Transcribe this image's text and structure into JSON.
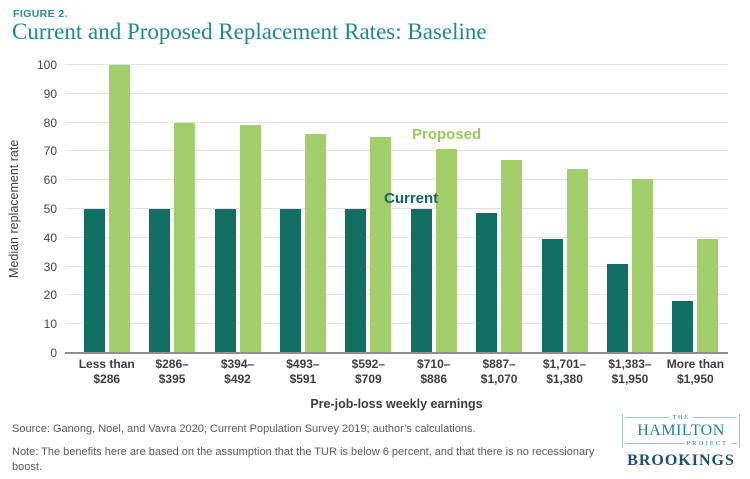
{
  "figure_label": "FIGURE 2.",
  "title": "Current and Proposed Replacement Rates: Baseline",
  "chart_data": {
    "type": "bar",
    "title": "Current and Proposed Replacement Rates: Baseline",
    "xlabel": "Pre-job-loss weekly earnings",
    "ylabel": "Median replacement rate",
    "ylim": [
      0,
      100
    ],
    "ytick_step": 10,
    "grid": true,
    "legend_position": "inline-annotations",
    "categories": [
      "Less than\n$286",
      "$286–\n$395",
      "$394–\n$492",
      "$493–\n$591",
      "$592–\n$709",
      "$710–\n$886",
      "$887–\n$1,070",
      "$1,701–\n$1,380",
      "$1,383–\n$1,950",
      "More than\n$1,950"
    ],
    "series": [
      {
        "name": "Current",
        "color": "#116e62",
        "values": [
          50,
          50,
          50,
          50,
          50,
          50,
          48.5,
          39.5,
          31,
          18
        ]
      },
      {
        "name": "Proposed",
        "color": "#a2ce6c",
        "values": [
          100,
          80,
          79,
          76,
          75,
          71,
          67,
          64,
          60.5,
          39.5
        ]
      }
    ]
  },
  "footer": {
    "source": "Source: Ganong, Noel, and Vavra 2020; Current Population Survey 2019; author’s calculations.",
    "note": "Note: The benefits here are based on the assumption that the TUR is below 6 percent, and that there is no recessionary boost."
  },
  "logo": {
    "the": "THE",
    "hamilton": "HAMILTON",
    "project": "PROJECT",
    "brookings": "BROOKINGS"
  },
  "colors": {
    "accent_teal": "#1f8795",
    "current_bar": "#116e62",
    "proposed_bar": "#a2ce6c",
    "proposed_label": "#99c95f",
    "current_label": "#11685c",
    "gridline": "#e3e3e3",
    "axis_line": "#8f8f8f",
    "brookings_navy": "#1f4e79"
  }
}
